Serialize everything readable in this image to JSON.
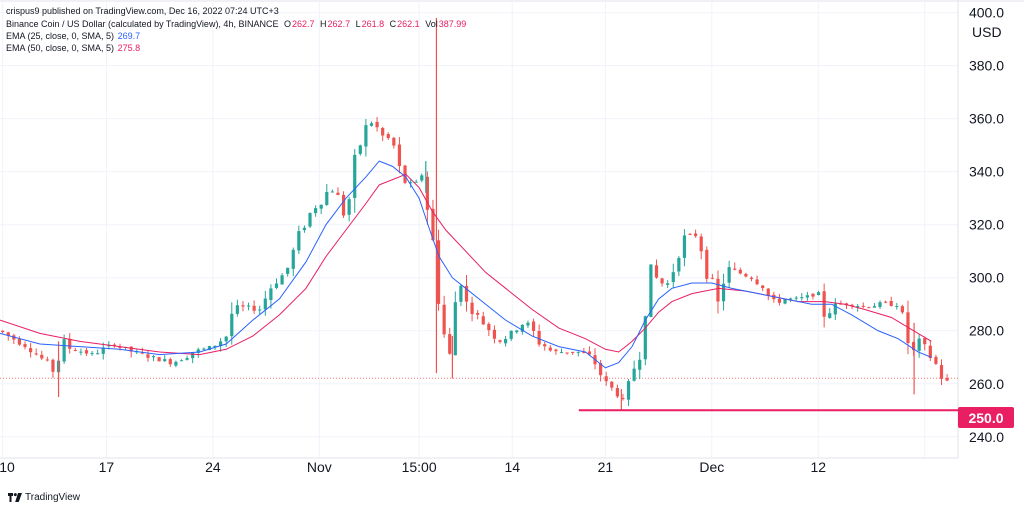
{
  "header": {
    "published": "crispus9 published on TradingView.com, Dec 16, 2022 07:24 UTC+3",
    "symbol": "Binance Coin / US Dollar (calculated by TradingView), 4h, BINANCE",
    "ohlc": {
      "o_label": "O",
      "o": "262.7",
      "h_label": "H",
      "h": "262.7",
      "l_label": "L",
      "l": "261.8",
      "c_label": "C",
      "c": "262.1",
      "vol_label": "Vol",
      "vol": "387.99"
    },
    "ema1": {
      "label": "EMA (25, close, 0, SMA, 5)",
      "value": "269.7",
      "color": "#2962ff"
    },
    "ema2": {
      "label": "EMA (50, close, 0, SMA, 5)",
      "value": "275.8",
      "color": "#e91e63"
    }
  },
  "price_axis": {
    "currency": "USD"
  },
  "support_label": "250.0",
  "brand": "TradingView",
  "colors": {
    "up": "#26a69a",
    "down": "#ef5350",
    "support": "#e91e63",
    "ema_fast": "#2962ff",
    "ema_slow": "#e91e63",
    "last_price_line": "#ef5350"
  },
  "chart_data": {
    "type": "candlestick",
    "title": "Binance Coin / US Dollar, 4h, BINANCE",
    "ylabel": "USD",
    "ylim": [
      232,
      404
    ],
    "xlim": [
      0,
      72
    ],
    "y_ticks": [
      240,
      260,
      280,
      300,
      320,
      340,
      360,
      380,
      400
    ],
    "y_tick_labels": [
      "240.0",
      "260.0",
      "280.0",
      "300.0",
      "320.0",
      "340.0",
      "360.0",
      "380.0",
      "400.0"
    ],
    "x_ticks": [
      0.2,
      8,
      16,
      24,
      31.5,
      38.5,
      45.5,
      53.5,
      61.5,
      69.5
    ],
    "x_tick_labels": [
      "10",
      "17",
      "24",
      "Nov",
      "15:00",
      "14",
      "21",
      "Dec",
      "12",
      ""
    ],
    "last_price": 262.1,
    "support_level": {
      "value": 250.0,
      "from_x": 43.5,
      "to_x": 72
    },
    "ema_fast": [
      [
        0,
        279
      ],
      [
        3,
        275
      ],
      [
        6,
        274
      ],
      [
        9,
        273
      ],
      [
        12,
        271
      ],
      [
        15,
        272
      ],
      [
        17,
        275
      ],
      [
        19,
        284
      ],
      [
        21,
        292
      ],
      [
        23,
        306
      ],
      [
        24.5,
        320
      ],
      [
        26,
        330
      ],
      [
        27.5,
        338
      ],
      [
        28.5,
        344
      ],
      [
        29.5,
        342
      ],
      [
        30.5,
        338
      ],
      [
        31.5,
        330
      ],
      [
        32.3,
        318
      ],
      [
        33,
        308
      ],
      [
        34,
        300
      ],
      [
        35,
        296
      ],
      [
        36.5,
        290
      ],
      [
        38,
        284
      ],
      [
        40,
        278
      ],
      [
        42,
        274
      ],
      [
        44,
        272
      ],
      [
        45.5,
        266
      ],
      [
        46.5,
        268
      ],
      [
        47.5,
        274
      ],
      [
        48.5,
        284
      ],
      [
        49.5,
        292
      ],
      [
        50.5,
        296
      ],
      [
        52,
        298
      ],
      [
        53.5,
        298
      ],
      [
        55,
        296
      ],
      [
        57,
        294
      ],
      [
        59,
        292
      ],
      [
        61,
        290
      ],
      [
        62.5,
        290
      ],
      [
        64,
        286
      ],
      [
        66,
        280
      ],
      [
        67.5,
        277
      ],
      [
        69,
        272
      ],
      [
        70,
        270
      ]
    ],
    "ema_slow": [
      [
        0,
        284
      ],
      [
        3,
        279
      ],
      [
        6,
        276
      ],
      [
        9,
        274
      ],
      [
        12,
        272
      ],
      [
        15,
        271
      ],
      [
        17,
        273
      ],
      [
        19,
        278
      ],
      [
        21,
        286
      ],
      [
        23,
        296
      ],
      [
        24.5,
        308
      ],
      [
        26,
        318
      ],
      [
        27.5,
        328
      ],
      [
        28.5,
        335
      ],
      [
        29.5,
        337
      ],
      [
        30.5,
        339
      ],
      [
        31.5,
        334
      ],
      [
        32.5,
        325
      ],
      [
        33.5,
        318
      ],
      [
        35,
        310
      ],
      [
        36.5,
        302
      ],
      [
        38,
        296
      ],
      [
        40,
        288
      ],
      [
        42,
        281
      ],
      [
        44,
        277
      ],
      [
        45.5,
        273
      ],
      [
        46.5,
        272
      ],
      [
        47.5,
        276
      ],
      [
        48.5,
        281
      ],
      [
        49.5,
        287
      ],
      [
        50.5,
        291
      ],
      [
        52,
        294
      ],
      [
        54,
        296
      ],
      [
        56,
        295
      ],
      [
        58,
        293
      ],
      [
        60,
        291
      ],
      [
        62,
        291
      ],
      [
        63.5,
        290
      ],
      [
        65,
        288
      ],
      [
        67,
        285
      ],
      [
        69,
        279
      ],
      [
        70,
        276
      ]
    ],
    "ohlc_anchors": [
      [
        0,
        280,
        1
      ],
      [
        2,
        274,
        1
      ],
      [
        3.5,
        268,
        1
      ],
      [
        4.2,
        264,
        1
      ],
      [
        4.6,
        275,
        0
      ],
      [
        5.5,
        273,
        1
      ],
      [
        7,
        271,
        1
      ],
      [
        8.5,
        275,
        0
      ],
      [
        10,
        272,
        1
      ],
      [
        11.5,
        270,
        1
      ],
      [
        13,
        268,
        1
      ],
      [
        14.5,
        272,
        0
      ],
      [
        16,
        274,
        0
      ],
      [
        17,
        278,
        0
      ],
      [
        17.5,
        288,
        0
      ],
      [
        18.5,
        289,
        0
      ],
      [
        19.5,
        288,
        1
      ],
      [
        20.5,
        298,
        0
      ],
      [
        21.5,
        302,
        0
      ],
      [
        22.5,
        316,
        0
      ],
      [
        23.5,
        326,
        0
      ],
      [
        24.3,
        330,
        1
      ],
      [
        24.8,
        334,
        0
      ],
      [
        25.5,
        330,
        1
      ],
      [
        26,
        322,
        1
      ],
      [
        26.5,
        338,
        0
      ],
      [
        27.3,
        355,
        0
      ],
      [
        28,
        359,
        0
      ],
      [
        28.8,
        353,
        1
      ],
      [
        29.5,
        352,
        1
      ],
      [
        30,
        340,
        1
      ],
      [
        30.5,
        336,
        1
      ],
      [
        31.2,
        335,
        1
      ],
      [
        31.8,
        340,
        0
      ],
      [
        32.3,
        320,
        1
      ],
      [
        32.8,
        305,
        1
      ],
      [
        33.2,
        282,
        1
      ],
      [
        33.8,
        270,
        1
      ],
      [
        34.5,
        305,
        0
      ],
      [
        35,
        290,
        1
      ],
      [
        35.5,
        288,
        1
      ],
      [
        36.5,
        282,
        1
      ],
      [
        37.5,
        276,
        1
      ],
      [
        38.5,
        279,
        0
      ],
      [
        39.5,
        284,
        0
      ],
      [
        40.5,
        276,
        1
      ],
      [
        41.5,
        272,
        1
      ],
      [
        42.5,
        272,
        0
      ],
      [
        43.5,
        272,
        0
      ],
      [
        44.5,
        270,
        1
      ],
      [
        45.5,
        260,
        1
      ],
      [
        46.5,
        256,
        1
      ],
      [
        46.9,
        252,
        1
      ],
      [
        47.5,
        264,
        0
      ],
      [
        48.2,
        274,
        0
      ],
      [
        48.5,
        298,
        0
      ],
      [
        49.5,
        300,
        0
      ],
      [
        50,
        296,
        1
      ],
      [
        50.5,
        301,
        0
      ],
      [
        51,
        312,
        0
      ],
      [
        51.8,
        316,
        0
      ],
      [
        52.5,
        316,
        0
      ],
      [
        53,
        304,
        1
      ],
      [
        53.5,
        300,
        1
      ],
      [
        54,
        288,
        1
      ],
      [
        54.5,
        303,
        0
      ],
      [
        55.5,
        302,
        0
      ],
      [
        56.5,
        300,
        1
      ],
      [
        57.5,
        296,
        1
      ],
      [
        58,
        290,
        1
      ],
      [
        59,
        292,
        0
      ],
      [
        60,
        292,
        0
      ],
      [
        61.5,
        294,
        0
      ],
      [
        62,
        286,
        1
      ],
      [
        63,
        290,
        0
      ],
      [
        64,
        290,
        0
      ],
      [
        65,
        289,
        0
      ],
      [
        66,
        290,
        0
      ],
      [
        67.5,
        290,
        0
      ],
      [
        68,
        282,
        1
      ],
      [
        68.5,
        270,
        1
      ],
      [
        69,
        276,
        0
      ],
      [
        70,
        270,
        1
      ],
      [
        70.5,
        266,
        1
      ],
      [
        71,
        260,
        1
      ],
      [
        71.5,
        262,
        0
      ]
    ],
    "spikes": [
      {
        "x": 32.8,
        "high": 398,
        "low": 264,
        "color": "down"
      },
      {
        "x": 32.0,
        "high": 344,
        "low": 332,
        "color": "up"
      },
      {
        "x": 4.4,
        "high": 276,
        "low": 255,
        "color": "down"
      },
      {
        "x": 68.7,
        "high": 283,
        "low": 256,
        "color": "down"
      },
      {
        "x": 34.0,
        "high": 278,
        "low": 262,
        "color": "down"
      },
      {
        "x": 46.7,
        "high": 258,
        "low": 250,
        "color": "down"
      }
    ]
  }
}
